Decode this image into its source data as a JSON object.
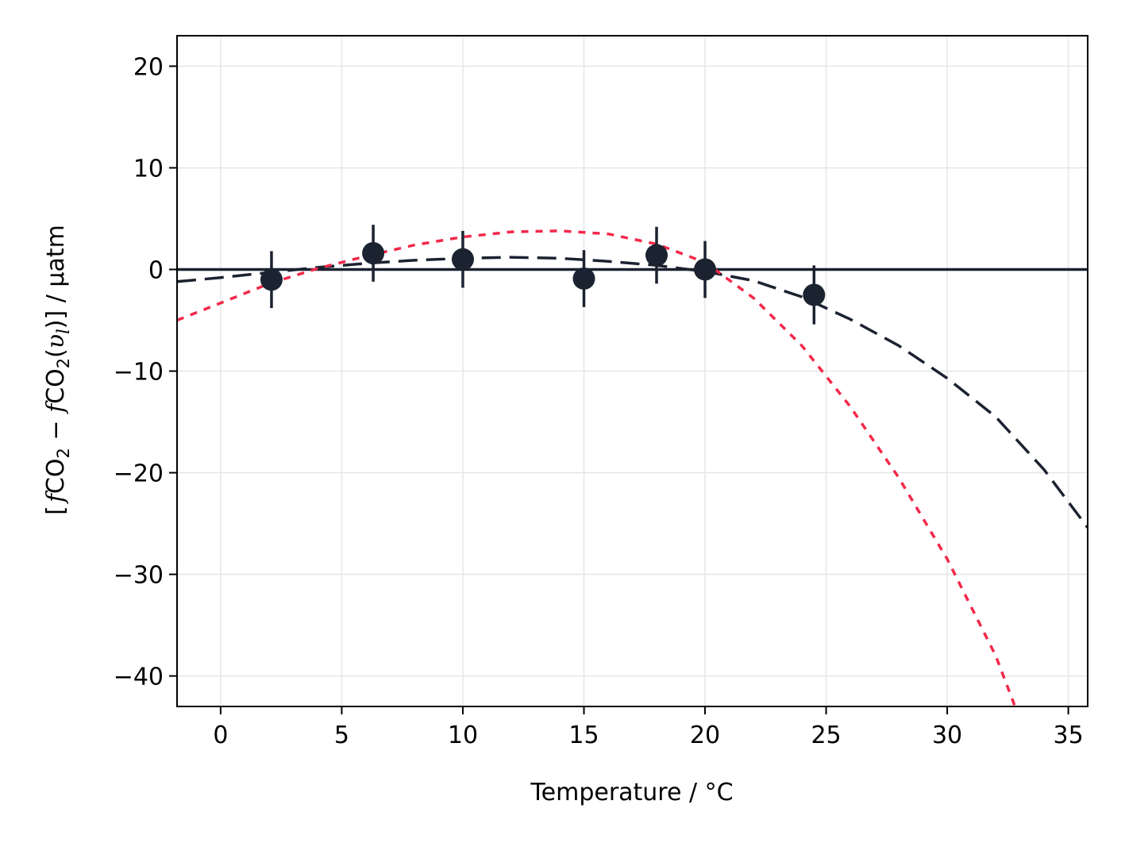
{
  "chart_data": {
    "type": "scatter",
    "xlabel": "Temperature / °C",
    "ylabel": {
      "open": "[",
      "f1": "f",
      "co2a": "CO",
      "sub2a": "2",
      "minus": " − ",
      "f2": "f",
      "co2b": "CO",
      "sub2b": "2",
      "paren_open": "(",
      "upsilon": "υ",
      "sub_l": "l",
      "paren_close": ")",
      "close": "]",
      "unit": " / µatm"
    },
    "xlim": [
      -1.8,
      35.8
    ],
    "ylim": [
      -43,
      23
    ],
    "xticks": [
      0,
      5,
      10,
      15,
      20,
      25,
      30,
      35
    ],
    "xtick_labels": [
      "0",
      "5",
      "10",
      "15",
      "20",
      "25",
      "30",
      "35"
    ],
    "yticks": [
      20,
      10,
      0,
      -10,
      -20,
      -30,
      -40
    ],
    "ytick_labels": [
      "20",
      "10",
      "0",
      "−10",
      "−20",
      "−30",
      "−40"
    ],
    "grid": true,
    "reference_line_y": 0,
    "points": [
      {
        "x": 2.1,
        "y": -1.0,
        "err": 2.8
      },
      {
        "x": 6.3,
        "y": 1.6,
        "err": 2.8
      },
      {
        "x": 10.0,
        "y": 1.0,
        "err": 2.8
      },
      {
        "x": 15.0,
        "y": -0.9,
        "err": 2.8
      },
      {
        "x": 18.0,
        "y": 1.4,
        "err": 2.8
      },
      {
        "x": 20.0,
        "y": 0.0,
        "err": 2.8
      },
      {
        "x": 24.5,
        "y": -2.5,
        "err": 2.9
      }
    ],
    "series": [
      {
        "style": "dashed",
        "color": "#1b2230",
        "x": [
          -1.8,
          0,
          2,
          4,
          6,
          8,
          10,
          12,
          14,
          16,
          18,
          20,
          22,
          24,
          26,
          28,
          30,
          32,
          34,
          35.8
        ],
        "y": [
          -1.2,
          -0.8,
          -0.3,
          0.2,
          0.6,
          0.9,
          1.1,
          1.2,
          1.1,
          0.8,
          0.4,
          -0.2,
          -1.1,
          -2.7,
          -4.9,
          -7.5,
          -10.7,
          -14.5,
          -19.7,
          -25.4
        ]
      },
      {
        "style": "dotted",
        "color": "#f2294a",
        "x": [
          -1.8,
          0,
          2,
          4,
          6,
          8,
          10,
          12,
          14,
          16,
          18,
          20,
          22,
          24,
          26,
          28,
          30,
          32,
          32.8
        ],
        "y": [
          -5.0,
          -3.3,
          -1.4,
          0.1,
          1.3,
          2.4,
          3.2,
          3.7,
          3.8,
          3.5,
          2.5,
          0.7,
          -2.8,
          -7.5,
          -13.5,
          -20.5,
          -28.5,
          -38.0,
          -43.0
        ]
      }
    ],
    "colors": {
      "points": "#1b2230",
      "reference_line": "#1b2230",
      "grid": "#e6e6e6",
      "axes": "#000000"
    }
  }
}
